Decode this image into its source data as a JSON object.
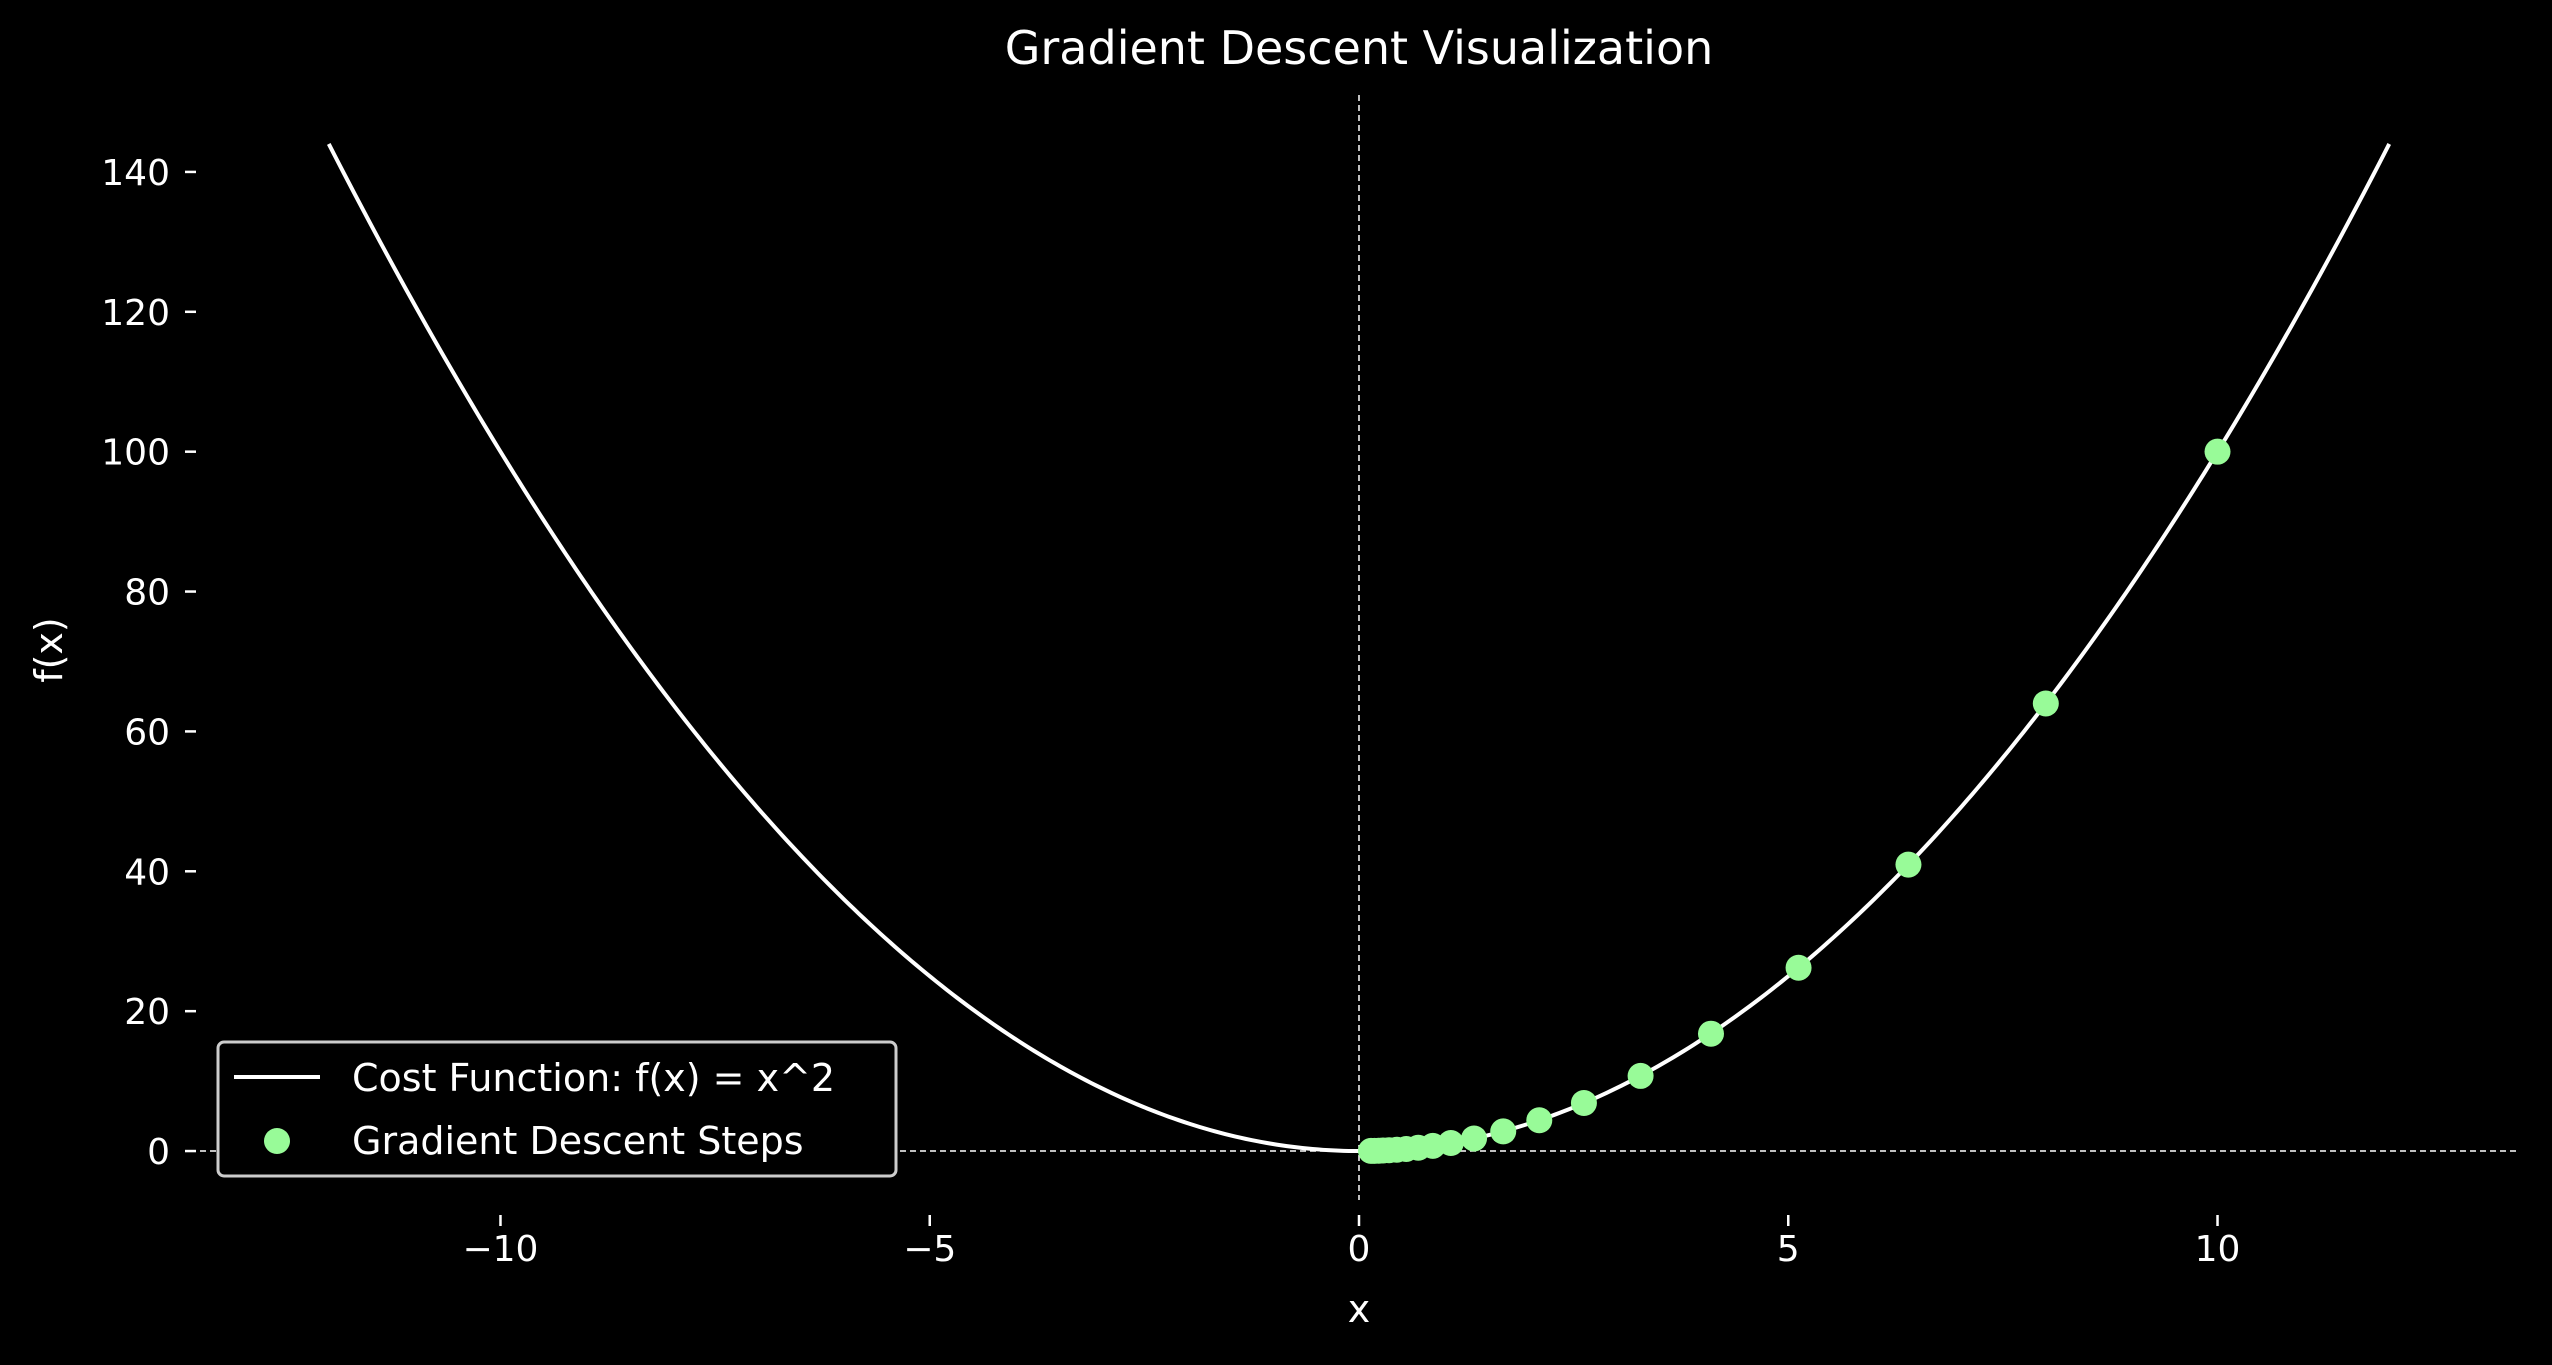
{
  "chart_data": {
    "type": "line",
    "title": "Gradient Descent Visualization",
    "xlabel": "x",
    "ylabel": "f(x)",
    "xlim": [
      -13.5,
      13.5
    ],
    "ylim": [
      -7,
      151
    ],
    "xticks": [
      -10,
      -5,
      0,
      5,
      10
    ],
    "xtick_labels": [
      "−10",
      "−5",
      "0",
      "5",
      "10"
    ],
    "yticks": [
      0,
      20,
      40,
      60,
      80,
      100,
      120,
      140
    ],
    "ytick_labels": [
      "0",
      "20",
      "40",
      "60",
      "80",
      "100",
      "120",
      "140"
    ],
    "grid": false,
    "reference_lines": {
      "x": 0,
      "y": 0,
      "style": "dashed"
    },
    "legend_position": "lower left",
    "series": [
      {
        "name": "Cost Function: f(x) = x^2",
        "kind": "line",
        "color": "#ffffff",
        "function": "x^2",
        "x_range": [
          -12,
          12
        ]
      },
      {
        "name": "Gradient Descent Steps",
        "kind": "scatter",
        "color": "#98fb98",
        "points": [
          {
            "x": 10.0,
            "y": 100.0
          },
          {
            "x": 8.0,
            "y": 64.0
          },
          {
            "x": 6.4,
            "y": 40.96
          },
          {
            "x": 5.12,
            "y": 26.21
          },
          {
            "x": 4.1,
            "y": 16.78
          },
          {
            "x": 3.28,
            "y": 10.74
          },
          {
            "x": 2.62,
            "y": 6.87
          },
          {
            "x": 2.1,
            "y": 4.4
          },
          {
            "x": 1.68,
            "y": 2.81
          },
          {
            "x": 1.34,
            "y": 1.8
          },
          {
            "x": 1.07,
            "y": 1.15
          },
          {
            "x": 0.86,
            "y": 0.74
          },
          {
            "x": 0.69,
            "y": 0.47
          },
          {
            "x": 0.55,
            "y": 0.3
          },
          {
            "x": 0.44,
            "y": 0.19
          },
          {
            "x": 0.35,
            "y": 0.12
          },
          {
            "x": 0.28,
            "y": 0.08
          },
          {
            "x": 0.23,
            "y": 0.05
          },
          {
            "x": 0.18,
            "y": 0.03
          },
          {
            "x": 0.14,
            "y": 0.02
          }
        ]
      }
    ]
  },
  "colors": {
    "background": "#000000",
    "foreground": "#ffffff",
    "steps": "#98fb98"
  }
}
